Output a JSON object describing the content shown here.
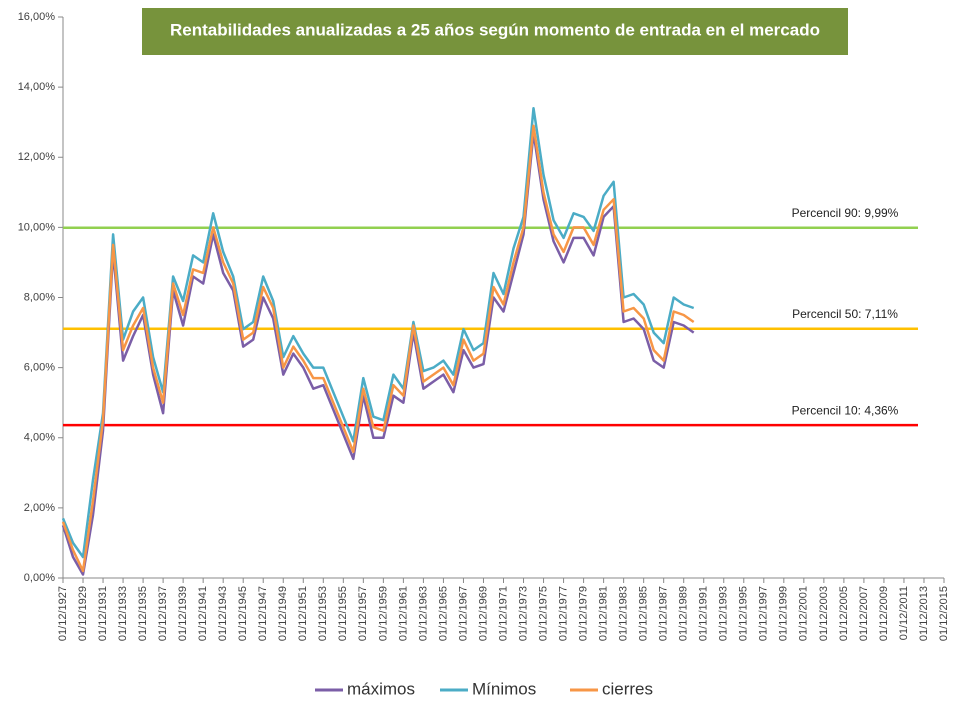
{
  "chart_data": {
    "type": "line",
    "title": "Rentabilidades anualizadas a 25 años según momento de entrada en el mercado",
    "categories": [
      "01/12/1927",
      null,
      "01/12/1929",
      null,
      "01/12/1931",
      null,
      "01/12/1933",
      null,
      "01/12/1935",
      null,
      "01/12/1937",
      null,
      "01/12/1939",
      null,
      "01/12/1941",
      null,
      "01/12/1943",
      null,
      "01/12/1945",
      null,
      "01/12/1947",
      null,
      "01/12/1949",
      null,
      "01/12/1951",
      null,
      "01/12/1953",
      null,
      "01/12/1955",
      null,
      "01/12/1957",
      null,
      "01/12/1959",
      null,
      "01/12/1961",
      null,
      "01/12/1963",
      null,
      "01/12/1965",
      null,
      "01/12/1967",
      null,
      "01/12/1969",
      null,
      "01/12/1971",
      null,
      "01/12/1973",
      null,
      "01/12/1975",
      null,
      "01/12/1977",
      null,
      "01/12/1979",
      null,
      "01/12/1981",
      null,
      "01/12/1983",
      null,
      "01/12/1985",
      null,
      "01/12/1987",
      null,
      "01/12/1989",
      null,
      "01/12/1991",
      null,
      "01/12/1993",
      null,
      "01/12/1995",
      null,
      "01/12/1997",
      null,
      "01/12/1999",
      null,
      "01/12/2001",
      null,
      "01/12/2003",
      null,
      "01/12/2005",
      null,
      "01/12/2007",
      null,
      "01/12/2009",
      null,
      "01/12/2011",
      null,
      "01/12/2013",
      null,
      "01/12/2015"
    ],
    "series": [
      {
        "name": "máximos",
        "color": "#7b5ea7",
        "values": [
          1.5,
          0.6,
          0.1,
          1.8,
          4.2,
          9.3,
          6.2,
          6.9,
          7.5,
          5.8,
          4.7,
          8.2,
          7.2,
          8.6,
          8.4,
          9.8,
          8.7,
          8.2,
          6.6,
          6.8,
          8.0,
          7.4,
          5.8,
          6.4,
          6.0,
          5.4,
          5.5,
          4.8,
          4.1,
          3.4,
          5.2,
          4.0,
          4.0,
          5.2,
          5.0,
          7.0,
          5.4,
          5.6,
          5.8,
          5.3,
          6.5,
          6.0,
          6.1,
          8.0,
          7.6,
          8.7,
          9.8,
          12.7,
          10.8,
          9.6,
          9.0,
          9.7,
          9.7,
          9.2,
          10.3,
          10.6,
          7.3,
          7.4,
          7.1,
          6.2,
          6.0,
          7.3,
          7.2,
          7.0,
          null,
          null,
          null,
          null,
          null,
          null,
          null,
          null,
          null,
          null,
          null,
          null,
          null,
          null,
          null,
          null,
          null,
          null,
          null,
          null,
          null,
          null,
          null,
          null,
          null
        ]
      },
      {
        "name": "Mínimos",
        "color": "#4bacc6",
        "values": [
          1.7,
          1.0,
          0.6,
          2.8,
          4.7,
          9.8,
          6.8,
          7.6,
          8.0,
          6.3,
          5.3,
          8.6,
          7.9,
          9.2,
          9.0,
          10.4,
          9.3,
          8.6,
          7.1,
          7.3,
          8.6,
          7.9,
          6.3,
          6.9,
          6.4,
          6.0,
          6.0,
          5.3,
          4.6,
          3.9,
          5.7,
          4.6,
          4.5,
          5.8,
          5.4,
          7.3,
          5.9,
          6.0,
          6.2,
          5.8,
          7.1,
          6.5,
          6.7,
          8.7,
          8.1,
          9.4,
          10.3,
          13.4,
          11.5,
          10.2,
          9.7,
          10.4,
          10.3,
          9.9,
          10.9,
          11.3,
          8.0,
          8.1,
          7.8,
          7.0,
          6.7,
          8.0,
          7.8,
          7.7,
          null,
          null,
          null,
          null,
          null,
          null,
          null,
          null,
          null,
          null,
          null,
          null,
          null,
          null,
          null,
          null,
          null,
          null,
          null,
          null,
          null,
          null,
          null,
          null,
          null
        ]
      },
      {
        "name": "cierres",
        "color": "#f79646",
        "values": [
          1.6,
          0.8,
          0.2,
          2.2,
          4.5,
          9.5,
          6.5,
          7.2,
          7.7,
          6.0,
          5.0,
          8.4,
          7.5,
          8.8,
          8.7,
          10.0,
          9.0,
          8.4,
          6.8,
          7.0,
          8.3,
          7.7,
          6.0,
          6.6,
          6.2,
          5.7,
          5.7,
          5.0,
          4.3,
          3.6,
          5.4,
          4.3,
          4.2,
          5.5,
          5.2,
          7.2,
          5.6,
          5.8,
          6.0,
          5.5,
          6.8,
          6.2,
          6.4,
          8.3,
          7.8,
          9.0,
          10.0,
          12.9,
          11.0,
          9.8,
          9.3,
          10.0,
          10.0,
          9.5,
          10.5,
          10.8,
          7.6,
          7.7,
          7.4,
          6.5,
          6.2,
          7.6,
          7.5,
          7.3,
          null,
          null,
          null,
          null,
          null,
          null,
          null,
          null,
          null,
          null,
          null,
          null,
          null,
          null,
          null,
          null,
          null,
          null,
          null,
          null,
          null,
          null,
          null,
          null,
          null
        ]
      }
    ],
    "reference_lines": [
      {
        "label": "Percencil 90: 9,99%",
        "value": 9.99,
        "color": "#92d050"
      },
      {
        "label": "Percencil 50: 7,11%",
        "value": 7.11,
        "color": "#ffc000"
      },
      {
        "label": "Percencil 10: 4,36%",
        "value": 4.36,
        "color": "#ff0000"
      }
    ],
    "ylim": [
      0,
      16
    ],
    "yticks": [
      {
        "value": 0,
        "label": "0,00%"
      },
      {
        "value": 2,
        "label": "2,00%"
      },
      {
        "value": 4,
        "label": "4,00%"
      },
      {
        "value": 6,
        "label": "6,00%"
      },
      {
        "value": 8,
        "label": "8,00%"
      },
      {
        "value": 10,
        "label": "10,00%"
      },
      {
        "value": 12,
        "label": "12,00%"
      },
      {
        "value": 14,
        "label": "14,00%"
      },
      {
        "value": 16,
        "label": "16,00%"
      }
    ],
    "legend": "bottom"
  }
}
